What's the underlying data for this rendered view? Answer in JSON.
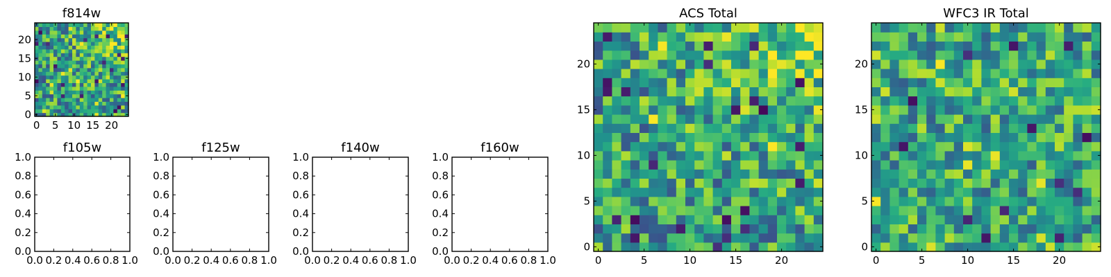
{
  "figure": {
    "background": "#ffffff",
    "colormap": "viridis",
    "colormap_stops": [
      "#440154",
      "#472c7a",
      "#3b518b",
      "#2c718e",
      "#21908d",
      "#27ad81",
      "#5cc863",
      "#aadc32",
      "#fde725"
    ]
  },
  "chart_data": [
    {
      "id": "f814w",
      "type": "heatmap",
      "title": "f814w",
      "xlabel": "",
      "ylabel": "",
      "xlim": [
        -0.5,
        24.5
      ],
      "ylim": [
        -0.5,
        24.5
      ],
      "xticks": [
        0,
        5,
        10,
        15,
        20
      ],
      "yticks": [
        0,
        5,
        10,
        15,
        20
      ],
      "xticklabels": [
        "0",
        "5",
        "10",
        "15",
        "20"
      ],
      "yticklabels": [
        "0",
        "5",
        "10",
        "15",
        "20"
      ],
      "grid": false,
      "pixels": {
        "nx": 25,
        "ny": 25,
        "value_range": [
          0,
          1
        ],
        "pattern": "random noise, brightest toward top-right corner",
        "base": 0.55,
        "noise": 0.32,
        "gradient": {
          "toward": "top-right",
          "strength": 0.38,
          "falloff_cells": 8
        },
        "seed": 814
      }
    },
    {
      "id": "f105w",
      "type": "heatmap",
      "title": "f105w",
      "xlabel": "",
      "ylabel": "",
      "xlim": [
        0,
        1
      ],
      "ylim": [
        0,
        1
      ],
      "xticks": [
        0,
        0.2,
        0.4,
        0.6,
        0.8,
        1.0
      ],
      "yticks": [
        0,
        0.2,
        0.4,
        0.6,
        0.8,
        1.0
      ],
      "xticklabels": [
        "0.0",
        "0.2",
        "0.4",
        "0.6",
        "0.8",
        "1.0"
      ],
      "yticklabels": [
        "0.0",
        "0.2",
        "0.4",
        "0.6",
        "0.8",
        "1.0"
      ],
      "grid": false,
      "empty": true
    },
    {
      "id": "f125w",
      "type": "heatmap",
      "title": "f125w",
      "xlabel": "",
      "ylabel": "",
      "xlim": [
        0,
        1
      ],
      "ylim": [
        0,
        1
      ],
      "xticks": [
        0,
        0.2,
        0.4,
        0.6,
        0.8,
        1.0
      ],
      "yticks": [
        0,
        0.2,
        0.4,
        0.6,
        0.8,
        1.0
      ],
      "xticklabels": [
        "0.0",
        "0.2",
        "0.4",
        "0.6",
        "0.8",
        "1.0"
      ],
      "yticklabels": [
        "0.0",
        "0.2",
        "0.4",
        "0.6",
        "0.8",
        "1.0"
      ],
      "grid": false,
      "empty": true
    },
    {
      "id": "f140w",
      "type": "heatmap",
      "title": "f140w",
      "xlabel": "",
      "ylabel": "",
      "xlim": [
        0,
        1
      ],
      "ylim": [
        0,
        1
      ],
      "xticks": [
        0,
        0.2,
        0.4,
        0.6,
        0.8,
        1.0
      ],
      "yticks": [
        0,
        0.2,
        0.4,
        0.6,
        0.8,
        1.0
      ],
      "xticklabels": [
        "0.0",
        "0.2",
        "0.4",
        "0.6",
        "0.8",
        "1.0"
      ],
      "yticklabels": [
        "0.0",
        "0.2",
        "0.4",
        "0.6",
        "0.8",
        "1.0"
      ],
      "grid": false,
      "empty": true
    },
    {
      "id": "f160w",
      "type": "heatmap",
      "title": "f160w",
      "xlabel": "",
      "ylabel": "",
      "xlim": [
        0,
        1
      ],
      "ylim": [
        0,
        1
      ],
      "xticks": [
        0,
        0.2,
        0.4,
        0.6,
        0.8,
        1.0
      ],
      "yticks": [
        0,
        0.2,
        0.4,
        0.6,
        0.8,
        1.0
      ],
      "xticklabels": [
        "0.0",
        "0.2",
        "0.4",
        "0.6",
        "0.8",
        "1.0"
      ],
      "yticklabels": [
        "0.0",
        "0.2",
        "0.4",
        "0.6",
        "0.8",
        "1.0"
      ],
      "grid": false,
      "empty": true
    },
    {
      "id": "acs_total",
      "type": "heatmap",
      "title": "ACS Total",
      "xlabel": "",
      "ylabel": "",
      "xlim": [
        -0.5,
        24.5
      ],
      "ylim": [
        -0.5,
        24.5
      ],
      "xticks": [
        0,
        5,
        10,
        15,
        20
      ],
      "yticks": [
        0,
        5,
        10,
        15,
        20
      ],
      "xticklabels": [
        "0",
        "5",
        "10",
        "15",
        "20"
      ],
      "yticklabels": [
        "0",
        "5",
        "10",
        "15",
        "20"
      ],
      "grid": false,
      "pixels": {
        "nx": 25,
        "ny": 25,
        "value_range": [
          0,
          1
        ],
        "pattern": "random noise, brightest toward top-right corner",
        "base": 0.55,
        "noise": 0.32,
        "gradient": {
          "toward": "top-right",
          "strength": 0.38,
          "falloff_cells": 8
        },
        "seed": 1977
      }
    },
    {
      "id": "wfc3_ir_total",
      "type": "heatmap",
      "title": "WFC3 IR Total",
      "xlabel": "",
      "ylabel": "",
      "xlim": [
        -0.5,
        24.5
      ],
      "ylim": [
        -0.5,
        24.5
      ],
      "xticks": [
        0,
        5,
        10,
        15,
        20
      ],
      "yticks": [
        0,
        5,
        10,
        15,
        20
      ],
      "xticklabels": [
        "0",
        "5",
        "10",
        "15",
        "20"
      ],
      "yticklabels": [
        "0",
        "5",
        "10",
        "15",
        "20"
      ],
      "grid": false,
      "pixels": {
        "nx": 25,
        "ny": 25,
        "value_range": [
          0,
          1
        ],
        "pattern": "random noise with a few bright yellow pixels and scattered dark pixels",
        "base": 0.6,
        "noise": 0.3,
        "seed": 4242
      }
    }
  ]
}
